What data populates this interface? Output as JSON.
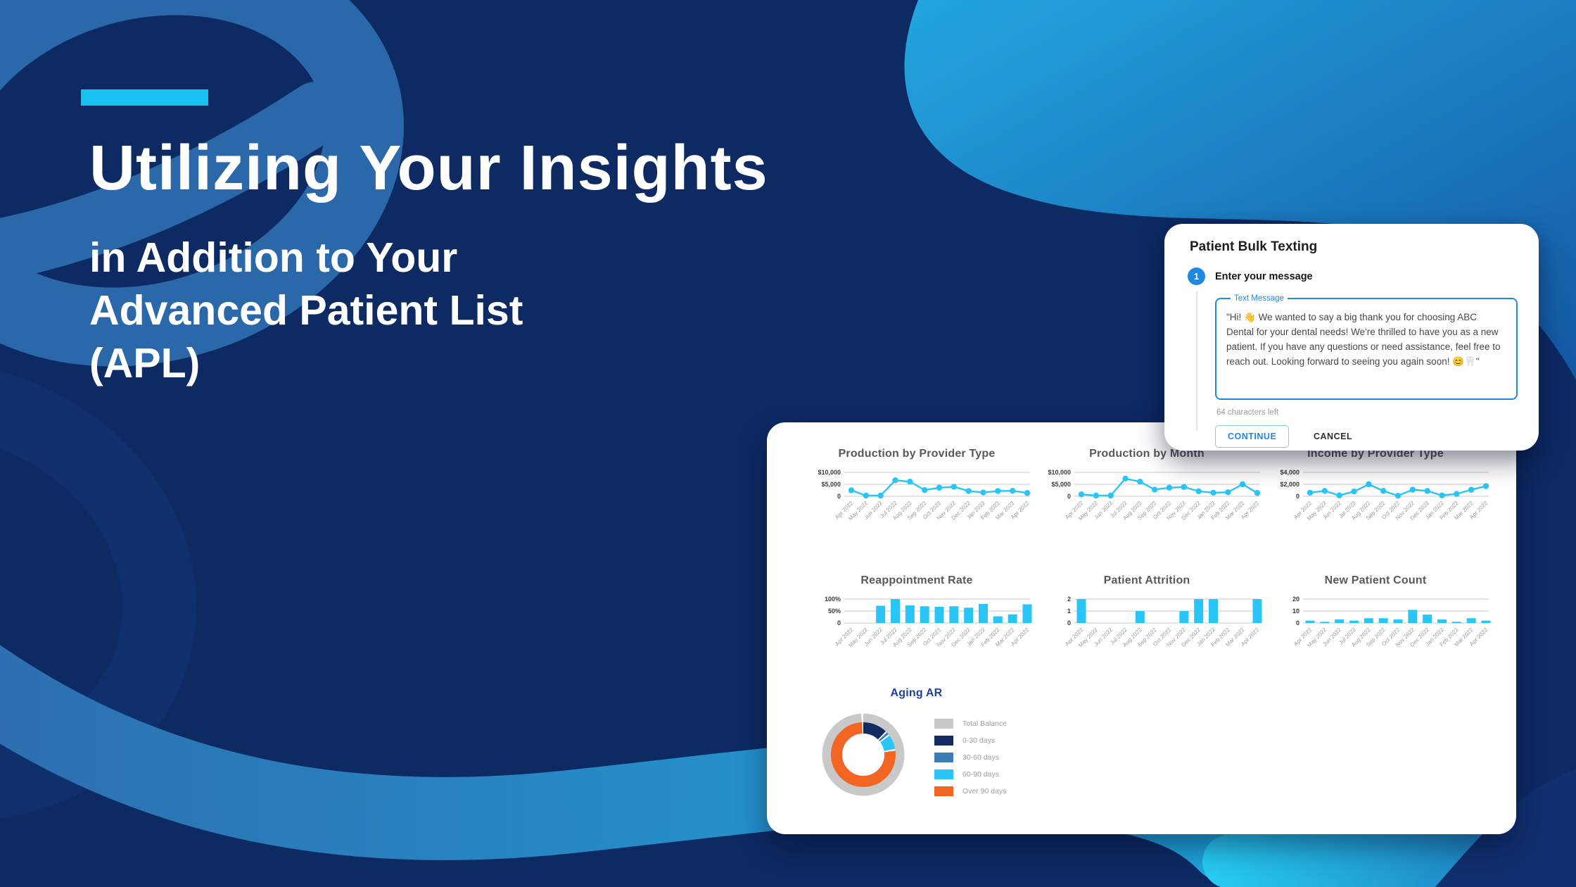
{
  "slide": {
    "background_color": "#0D2A63",
    "accent_color": "#18C2F0",
    "swirl_color": "#2B68A9",
    "title_line1": "Utilizing Your Insights",
    "title_line2": "in Addition to Your",
    "title_line3": "Advanced Patient List",
    "title_line4": "(APL)"
  },
  "modal": {
    "title": "Patient Bulk Texting",
    "step_number": "1",
    "step_label": "Enter your message",
    "field_label": "Text Message",
    "message": "\"Hi! 👋 We wanted to say a big thank you for choosing ABC Dental for your dental needs! We're thrilled to have you as a new patient. If you have any questions or need assistance, feel free to reach out. Looking forward to seeing you again soon! 😊🦷\"",
    "helper_text": "64 characters left",
    "continue_label": "CONTINUE",
    "cancel_label": "CANCEL",
    "accent_color": "#1E88E5"
  },
  "chart_data": [
    {
      "type": "line",
      "title": "Production by Provider Type",
      "categories": [
        "Apr 2022",
        "May 2022",
        "Jun 2022",
        "Jul 2022",
        "Aug 2022",
        "Sep 2022",
        "Oct 2022",
        "Nov 2022",
        "Dec 2022",
        "Jan 2022",
        "Feb 2022",
        "Mar 2022",
        "Apr 2022"
      ],
      "values": [
        2500,
        300,
        300,
        6700,
        6100,
        2600,
        3600,
        4000,
        2200,
        1600,
        2200,
        2300,
        1400
      ],
      "yticks": [
        "$10,000",
        "$5,000",
        "0"
      ],
      "ylim": [
        0,
        10000
      ],
      "ymax": 10000,
      "color": "#29C5F6"
    },
    {
      "type": "line",
      "title": "Production by Month",
      "categories": [
        "Apr 2022",
        "May 2022",
        "Jun 2022",
        "Jul 2022",
        "Aug 2022",
        "Sep 2022",
        "Oct 2022",
        "Nov 2022",
        "Dec 2022",
        "Jan 2022",
        "Feb 2022",
        "Mar 2022",
        "Apr 2022"
      ],
      "values": [
        800,
        300,
        300,
        7400,
        6100,
        2800,
        3600,
        3900,
        2100,
        1500,
        1700,
        5000,
        1400
      ],
      "yticks": [
        "$10,000",
        "$5,000",
        "0"
      ],
      "ylim": [
        0,
        10000
      ],
      "ymax": 10000,
      "color": "#29C5F6"
    },
    {
      "type": "line",
      "title": "Income by Provider Type",
      "categories": [
        "Apr 2022",
        "May 2022",
        "Jun 2022",
        "Jul 2022",
        "Aug 2022",
        "Sep 2022",
        "Oct 2022",
        "Nov 2022",
        "Dec 2022",
        "Jan 2022",
        "Feb 2022",
        "Mar 2022",
        "Apr 2022"
      ],
      "values": [
        600,
        900,
        150,
        800,
        2000,
        900,
        100,
        1100,
        900,
        150,
        400,
        1100,
        1700
      ],
      "yticks": [
        "$4,000",
        "$2,000",
        "0"
      ],
      "ylim": [
        0,
        4000
      ],
      "ymax": 4000,
      "color": "#29C5F6"
    },
    {
      "type": "bar",
      "title": "Reappointment Rate",
      "categories": [
        "Apr 2022",
        "May 2022",
        "Jun 2022",
        "Jul 2022",
        "Aug 2022",
        "Sep 2022",
        "Oct 2022",
        "Nov 2022",
        "Dec 2022",
        "Jan 2022",
        "Feb 2022",
        "Mar 2022",
        "Apr 2022"
      ],
      "values": [
        0,
        0,
        72,
        100,
        74,
        70,
        68,
        70,
        64,
        80,
        28,
        36,
        78
      ],
      "yticks": [
        "100%",
        "50%",
        "0"
      ],
      "ylim": [
        0,
        100
      ],
      "ymax": 100,
      "color": "#29C5F6"
    },
    {
      "type": "bar",
      "title": "Patient Attrition",
      "categories": [
        "Apr 2022",
        "May 2022",
        "Jun 2022",
        "Jul 2022",
        "Aug 2022",
        "Sep 2022",
        "Oct 2022",
        "Nov 2022",
        "Dec 2022",
        "Jan 2022",
        "Feb 2022",
        "Mar 2022",
        "Apr 2022"
      ],
      "values": [
        2,
        0,
        0,
        0,
        1,
        0,
        0,
        1,
        2,
        2,
        0,
        0,
        2
      ],
      "yticks": [
        "2",
        "1",
        "0"
      ],
      "ylim": [
        0,
        2
      ],
      "ymax": 2,
      "color": "#29C5F6"
    },
    {
      "type": "bar",
      "title": "New Patient Count",
      "categories": [
        "Apr 2022",
        "May 2022",
        "Jun 2022",
        "Jul 2022",
        "Aug 2022",
        "Sep 2022",
        "Oct 2022",
        "Nov 2022",
        "Dec 2022",
        "Jan 2022",
        "Feb 2022",
        "Mar 2022",
        "Apr 2022"
      ],
      "values": [
        2,
        1,
        3,
        2,
        4,
        4,
        3,
        11,
        7,
        3,
        1,
        4,
        2
      ],
      "yticks": [
        "20",
        "10",
        "0"
      ],
      "ylim": [
        0,
        20
      ],
      "ymax": 20,
      "color": "#29C5F6"
    },
    {
      "type": "donut",
      "title": "Aging AR",
      "ring_label": "Total Balance",
      "ring_color": "#C9C9C9",
      "segments": [
        {
          "label": "0-30 days",
          "value": 13,
          "color": "#142A63"
        },
        {
          "label": "30-60 days",
          "value": 2,
          "color": "#3E7CB5"
        },
        {
          "label": "60-90 days",
          "value": 8,
          "color": "#29C5F6"
        },
        {
          "label": "Over 90 days",
          "value": 77,
          "color": "#F26522"
        }
      ],
      "legend": [
        {
          "label": "Total Balance",
          "color": "#C9C9C9"
        },
        {
          "label": "0-30 days",
          "color": "#142A63"
        },
        {
          "label": "30-60 days",
          "color": "#3E7CB5"
        },
        {
          "label": "60-90 days",
          "color": "#29C5F6"
        },
        {
          "label": "Over 90 days",
          "color": "#F26522"
        }
      ],
      "legend_position": "right"
    }
  ]
}
